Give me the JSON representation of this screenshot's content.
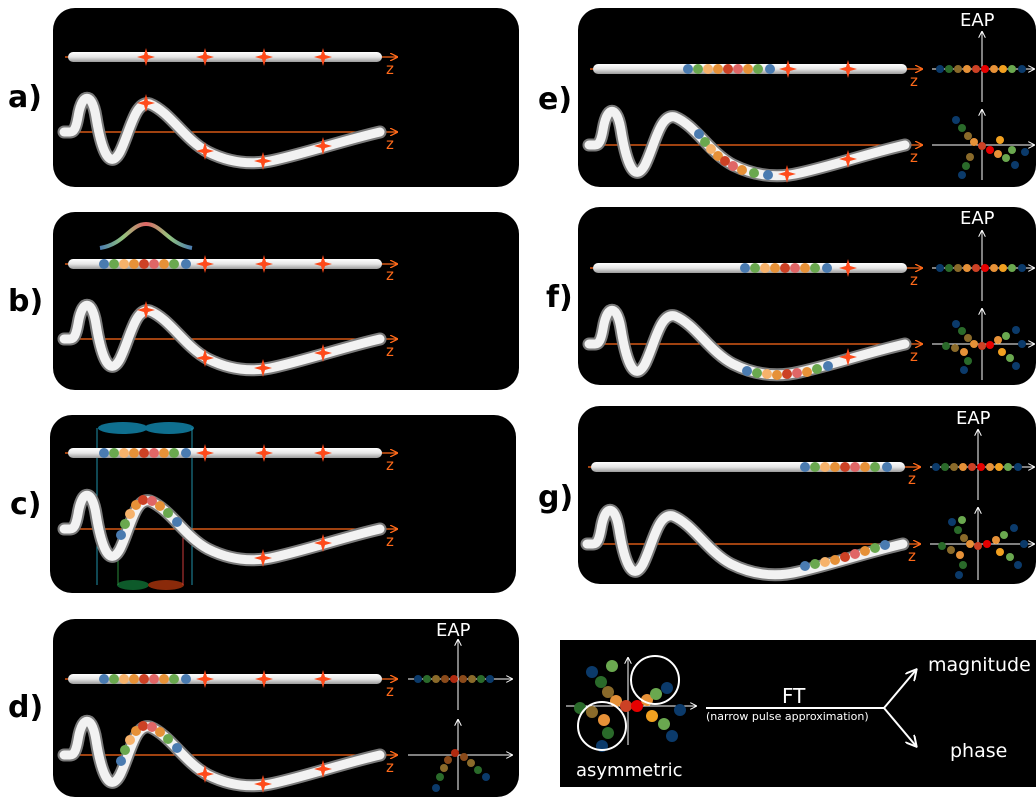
{
  "panels": {
    "a": {
      "label": "a)"
    },
    "b": {
      "label": "b)"
    },
    "c": {
      "label": "c)"
    },
    "d": {
      "label": "d)",
      "eap": "EAP"
    },
    "e": {
      "label": "e)",
      "eap": "EAP"
    },
    "f": {
      "label": "f)",
      "eap": "EAP"
    },
    "g": {
      "label": "g)",
      "eap": "EAP"
    }
  },
  "axis_label": "z",
  "legend": {
    "ft_label": "FT",
    "ft_sub": "(narrow pulse approximation)",
    "asym_label": "asymmetric",
    "magnitude_label": "magnitude",
    "phase_label": "phase"
  },
  "colors": {
    "bead_sequence": [
      "#4a7bb0",
      "#6aa84f",
      "#f6b26b",
      "#e69138",
      "#cc4125",
      "#e06666",
      "#e69138",
      "#6aa84f",
      "#4a7bb0"
    ],
    "marker": "#ff4a1a",
    "axis": "#ff6a1a",
    "background": "#000000"
  }
}
